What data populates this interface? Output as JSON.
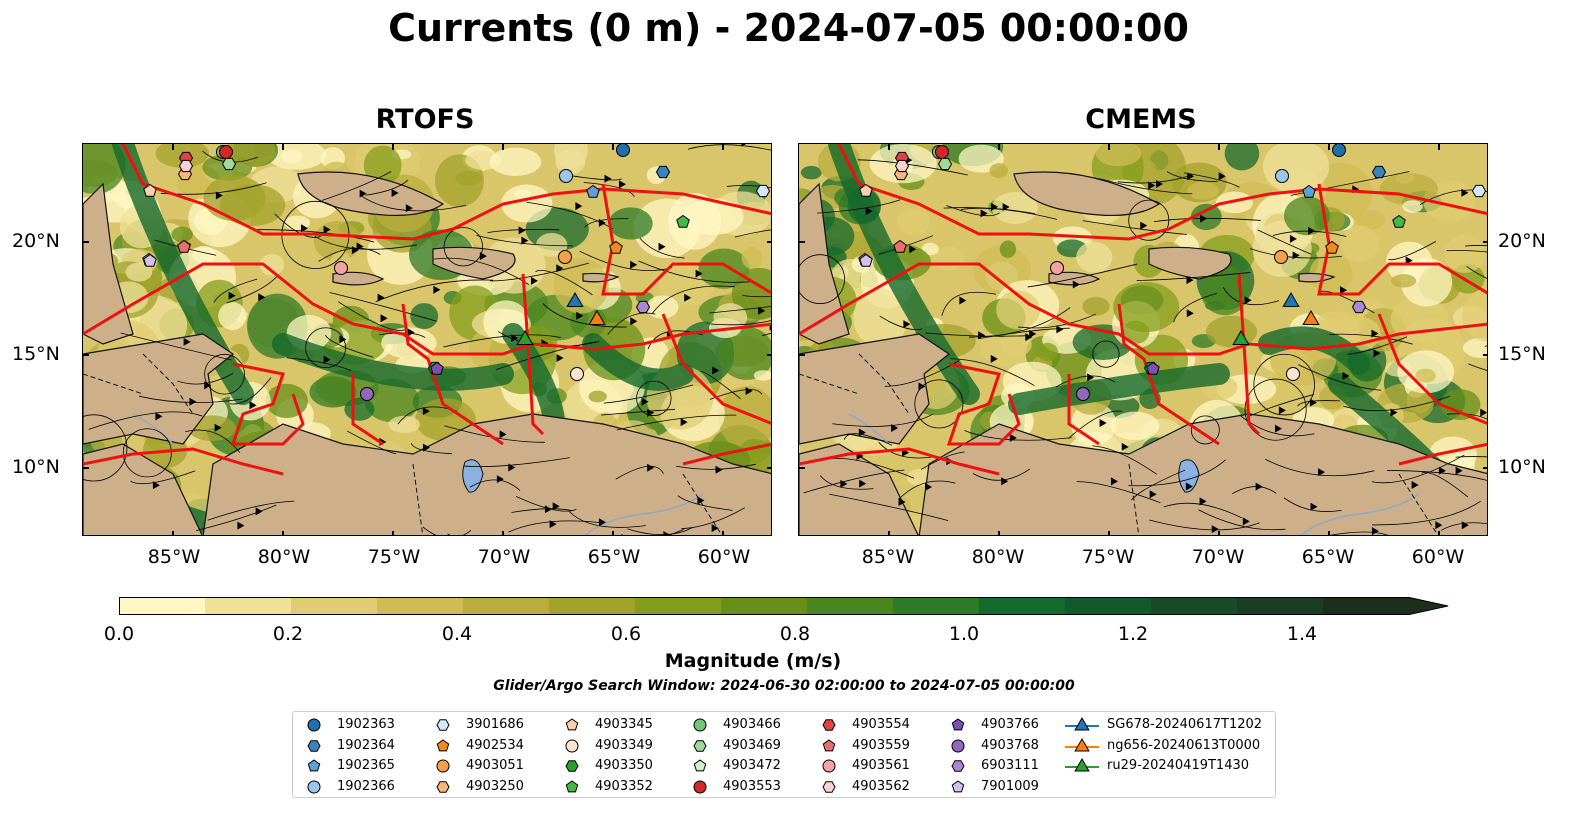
{
  "title": "Currents (0 m) - 2024-07-05 00:00:00",
  "panels": [
    {
      "title": "RTOFS",
      "variant": "rtofs"
    },
    {
      "title": "CMEMS",
      "variant": "cmems"
    }
  ],
  "lat_labels": [
    "20°N",
    "15°N",
    "10°N"
  ],
  "lon_labels": [
    "85°W",
    "80°W",
    "75°W",
    "70°W",
    "65°W",
    "60°W"
  ],
  "colorbar": {
    "label": "Magnitude (m/s)",
    "ticks": [
      "0.0",
      "0.2",
      "0.4",
      "0.6",
      "0.8",
      "1.0",
      "1.2",
      "1.4"
    ],
    "min": 0.0,
    "max": 1.5,
    "extend": "max",
    "colors": [
      "#fff7c4",
      "#efe09a",
      "#e0cc72",
      "#cfbc55",
      "#b9ad3f",
      "#a2a22c",
      "#849d1c",
      "#678f1a",
      "#4a861f",
      "#2f7a28",
      "#15692c",
      "#125a2c",
      "#184a2a",
      "#1b3d24",
      "#1c2f1d"
    ]
  },
  "search_window": "Glider/Argo Search Window: 2024-06-30 02:00:00 to 2024-07-05 00:00:00",
  "legend": [
    {
      "label": "1902363",
      "marker": "circle",
      "color": "#1f6fae"
    },
    {
      "label": "1902364",
      "marker": "hexagon",
      "color": "#3b83be"
    },
    {
      "label": "1902365",
      "marker": "pentagon",
      "color": "#5e9fd6"
    },
    {
      "label": "1902366",
      "marker": "circle",
      "color": "#9dc6ea"
    },
    {
      "label": "3901686",
      "marker": "hexagon",
      "color": "#d3e9fb"
    },
    {
      "label": "4902534",
      "marker": "pentagon",
      "color": "#f28a1a"
    },
    {
      "label": "4903051",
      "marker": "circle",
      "color": "#f7a04a"
    },
    {
      "label": "4903250",
      "marker": "hexagon",
      "color": "#f9b87a"
    },
    {
      "label": "4903345",
      "marker": "pentagon",
      "color": "#fcd1a8"
    },
    {
      "label": "4903349",
      "marker": "circle",
      "color": "#fde5cf"
    },
    {
      "label": "4903350",
      "marker": "hexagon",
      "color": "#2ca02c"
    },
    {
      "label": "4903352",
      "marker": "pentagon",
      "color": "#45b845"
    },
    {
      "label": "4903466",
      "marker": "circle",
      "color": "#74c476"
    },
    {
      "label": "4903469",
      "marker": "hexagon",
      "color": "#a1d99b"
    },
    {
      "label": "4903472",
      "marker": "pentagon",
      "color": "#d1f0c9"
    },
    {
      "label": "4903553",
      "marker": "circle",
      "color": "#d62728"
    },
    {
      "label": "4903554",
      "marker": "hexagon",
      "color": "#de4444"
    },
    {
      "label": "4903559",
      "marker": "pentagon",
      "color": "#ea7070"
    },
    {
      "label": "4903561",
      "marker": "circle",
      "color": "#f4a3a3"
    },
    {
      "label": "4903562",
      "marker": "hexagon",
      "color": "#fbd0d0"
    },
    {
      "label": "4903766",
      "marker": "pentagon",
      "color": "#7e4fb5"
    },
    {
      "label": "4903768",
      "marker": "circle",
      "color": "#9467bd"
    },
    {
      "label": "6903111",
      "marker": "hexagon",
      "color": "#ad86d6"
    },
    {
      "label": "7901009",
      "marker": "pentagon",
      "color": "#d3c0ee"
    },
    {
      "label": "SG678-20240617T1202",
      "marker": "triangle",
      "color": "#1f77b4"
    },
    {
      "label": "ng656-20240613T0000",
      "marker": "triangle",
      "color": "#ff7f0e"
    },
    {
      "label": "ru29-20240419T1430",
      "marker": "triangle",
      "color": "#2ca02c"
    }
  ]
}
